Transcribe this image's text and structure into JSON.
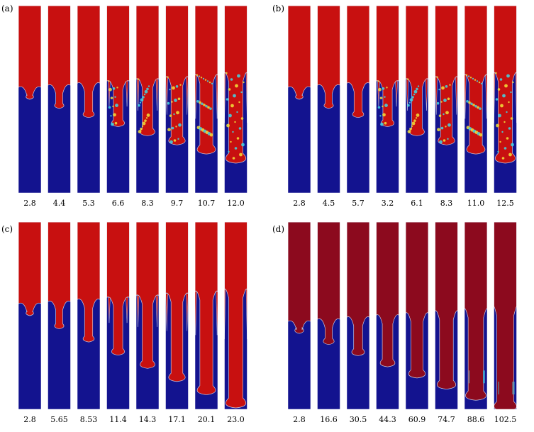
{
  "panels": [
    {
      "label": "(a)",
      "times": [
        "2.8",
        "4.4",
        "5.3",
        "6.6",
        "8.3",
        "9.7",
        "10.7",
        "12.0"
      ],
      "style": "turbulent"
    },
    {
      "label": "(b)",
      "times": [
        "2.8",
        "4.5",
        "5.7",
        "3.2",
        "6.1",
        "8.3",
        "11.0",
        "12.5"
      ],
      "style": "turbulent"
    },
    {
      "label": "(c)",
      "times": [
        "2.8",
        "5.65",
        "8.53",
        "11.4",
        "14.3",
        "17.1",
        "20.1",
        "23.0"
      ],
      "style": "smooth"
    },
    {
      "label": "(d)",
      "times": [
        "2.8",
        "16.6",
        "30.5",
        "44.3",
        "60.9",
        "74.7",
        "88.6",
        "102.5"
      ],
      "style": "viscous"
    }
  ],
  "colors": {
    "heavy_fluid": "#c81010",
    "heavy_fluid_dark": "#8c0a1e",
    "light_fluid": "#13138f",
    "mixing_cyan": "#3fd8e6",
    "mixing_yellow": "#f2e23a",
    "interface_line": "#c8c8e0"
  }
}
